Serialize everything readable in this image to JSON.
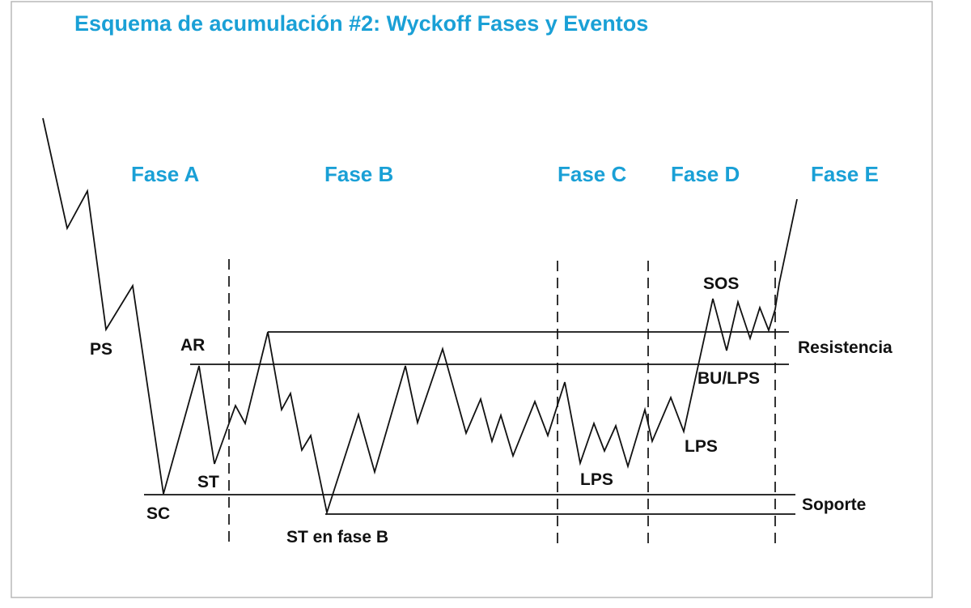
{
  "title": "Esquema de acumulación #2: Wyckoff Fases y Eventos",
  "colors": {
    "accent": "#1aa0d6",
    "ink": "#111111",
    "frame": "#b8b8b8"
  },
  "phases": [
    {
      "label": "Fase A"
    },
    {
      "label": "Fase B"
    },
    {
      "label": "Fase C"
    },
    {
      "label": "Fase D"
    },
    {
      "label": "Fase E"
    }
  ],
  "events": {
    "ps": "PS",
    "sc": "SC",
    "ar": "AR",
    "st": "ST",
    "st_b": "ST en fase B",
    "lps_c": "LPS",
    "lps_d": "LPS",
    "sos": "SOS",
    "bu_lps": "BU/LPS"
  },
  "levels": {
    "resistance": "Resistencia",
    "support": "Soporte"
  }
}
